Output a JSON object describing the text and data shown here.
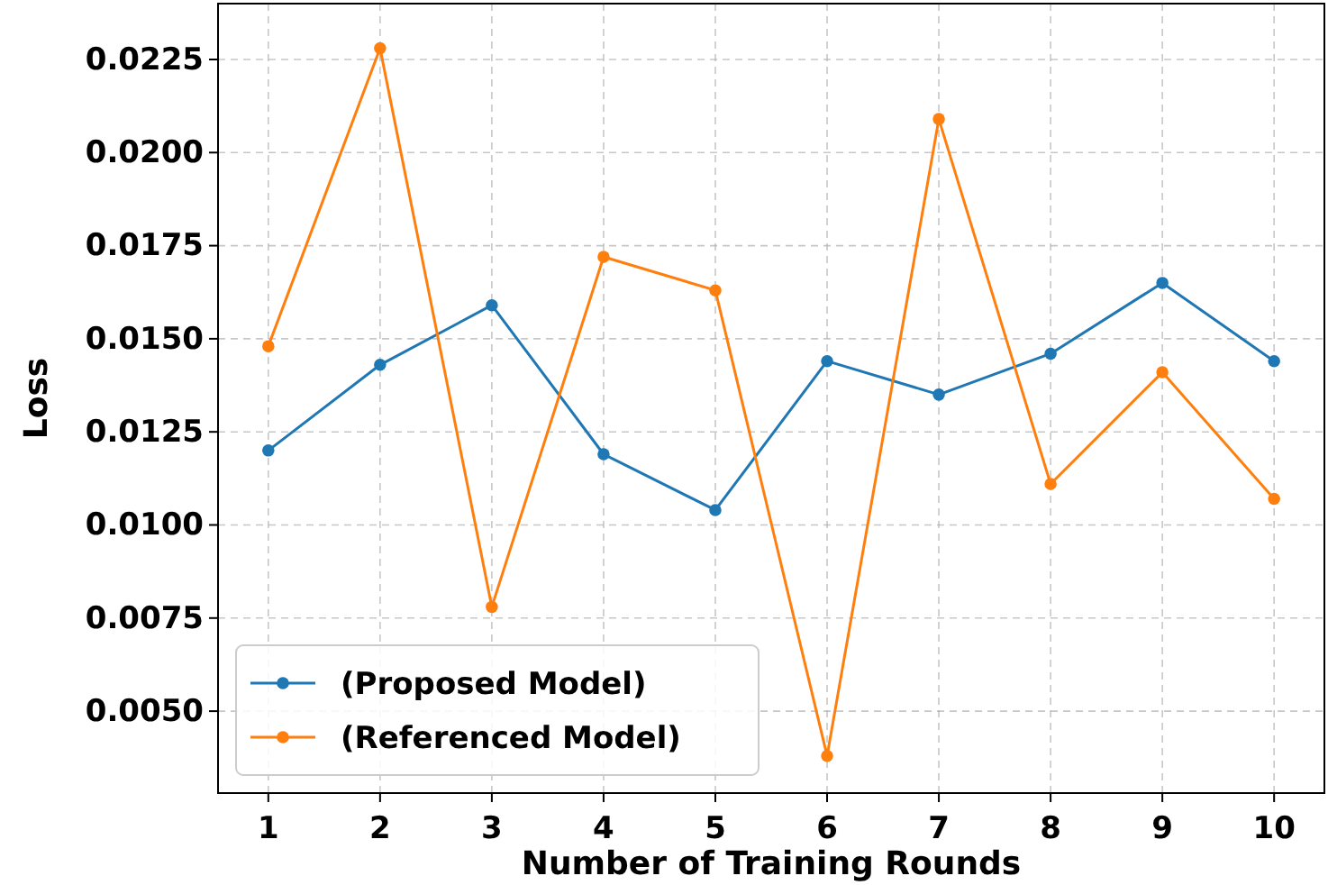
{
  "chart_data": {
    "type": "line",
    "xlabel": "Number of Training Rounds",
    "ylabel": "Loss",
    "x": [
      1,
      2,
      3,
      4,
      5,
      6,
      7,
      8,
      9,
      10
    ],
    "series": [
      {
        "name": "(Proposed Model)",
        "color": "#1f77b4",
        "values": [
          0.012,
          0.0143,
          0.0159,
          0.0119,
          0.0104,
          0.0144,
          0.0135,
          0.0146,
          0.0165,
          0.0144
        ]
      },
      {
        "name": "(Referenced Model)",
        "color": "#ff7f0e",
        "values": [
          0.0148,
          0.0228,
          0.0078,
          0.0172,
          0.0163,
          0.0038,
          0.0209,
          0.0111,
          0.0141,
          0.0107
        ]
      }
    ],
    "xlim": [
      0.55,
      10.45
    ],
    "xticks": [
      1,
      2,
      3,
      4,
      5,
      6,
      7,
      8,
      9,
      10
    ],
    "ylim": [
      0.0028,
      0.024
    ],
    "yticks": [
      {
        "value": 0.005,
        "label": "0.0050"
      },
      {
        "value": 0.0075,
        "label": "0.0075"
      },
      {
        "value": 0.01,
        "label": "0.0100"
      },
      {
        "value": 0.0125,
        "label": "0.0125"
      },
      {
        "value": 0.015,
        "label": "0.0150"
      },
      {
        "value": 0.0175,
        "label": "0.0175"
      },
      {
        "value": 0.02,
        "label": "0.0200"
      },
      {
        "value": 0.0225,
        "label": "0.0225"
      }
    ],
    "grid": true,
    "legend": "bottom left",
    "marker": "circle",
    "line_style": "solid"
  }
}
